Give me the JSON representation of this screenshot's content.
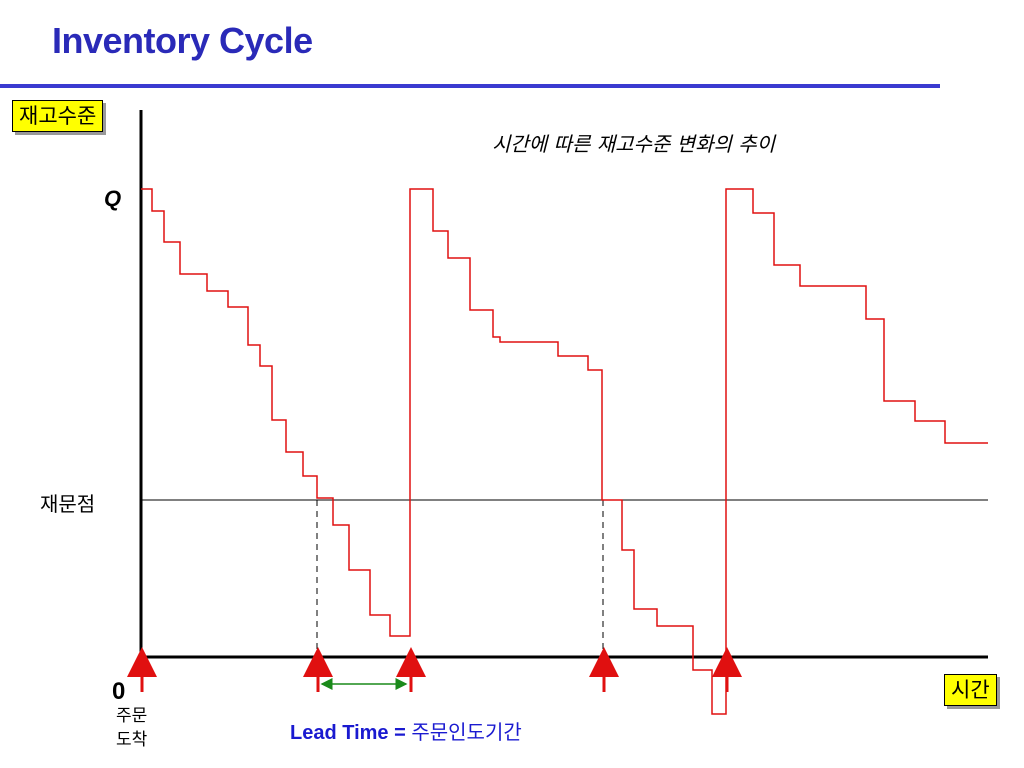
{
  "title": "Inventory Cycle",
  "y_axis_label": "재고수준",
  "x_axis_label": "시간",
  "subtitle": "시간에 따른 재고수준 변화의 추이",
  "q_label": "Q",
  "reorder_label": "재문점",
  "zero_label": "0",
  "order_label_line1": "주문",
  "order_label_line2": "도착",
  "lead_time_label": "Lead Time = ",
  "lead_time_desc": "주문인도기간",
  "colors": {
    "title": "#2a2ab8",
    "inventory_line": "#e01010",
    "arrow": "#e01010",
    "lead_time_arrow": "#1a8a1a",
    "label_box": "#ffff00",
    "lead_time_text": "#1a1ad0"
  }
}
